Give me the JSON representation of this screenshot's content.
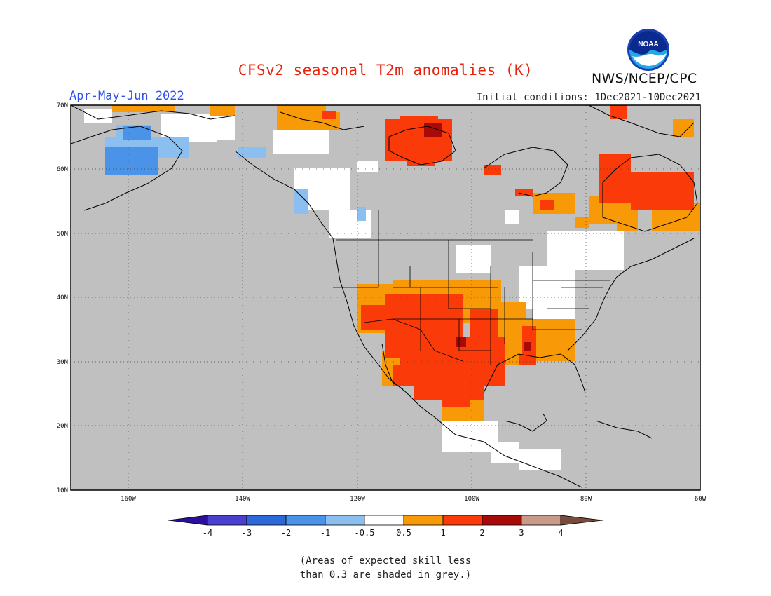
{
  "title": "CFSv2 seasonal T2m anomalies (K)",
  "season": "Apr-May-Jun 2022",
  "initial_conditions": "Initial conditions: 1Dec2021-10Dec2021",
  "agency": "NWS/NCEP/CPC",
  "logo": {
    "text": "NOAA",
    "icon": "noaa-logo-icon"
  },
  "map": {
    "lat_labels": [
      "70N",
      "60N",
      "50N",
      "40N",
      "30N",
      "20N",
      "10N"
    ],
    "lon_labels": [
      "160W",
      "140W",
      "120W",
      "100W",
      "80W",
      "60W"
    ],
    "lat_range": [
      10,
      70
    ],
    "lon_range": [
      -170,
      -60
    ],
    "background_color": "#c0c0c0"
  },
  "colorbar": {
    "labels": [
      "-4",
      "-3",
      "-2",
      "-1",
      "-0.5",
      "0.5",
      "1",
      "2",
      "3",
      "4"
    ],
    "colors": [
      "#2a0fa0",
      "#4b3fd0",
      "#2b68d8",
      "#4b93e8",
      "#8abff0",
      "#ffffff",
      "#f89a08",
      "#fa3a08",
      "#a80a08",
      "#c89a8a",
      "#7a4a3a"
    ]
  },
  "note": [
    "(Areas of expected skill less",
    "than 0.3 are shaded in grey.)"
  ]
}
